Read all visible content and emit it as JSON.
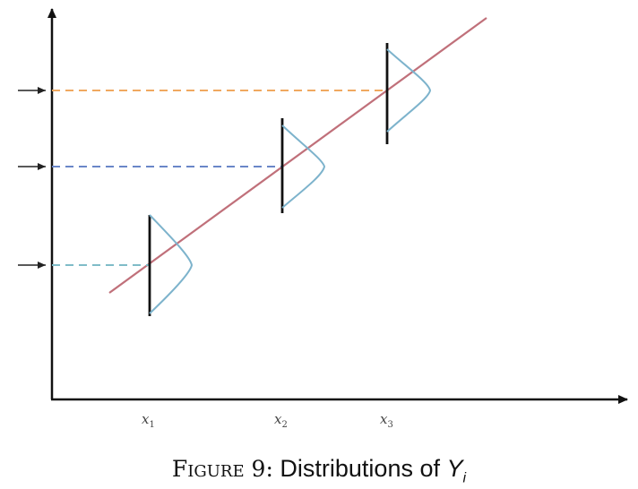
{
  "figure": {
    "caption_prefix": "Figure 9:",
    "caption_text": "Distributions of",
    "caption_variable": "Y",
    "caption_subscript": "i"
  },
  "x_labels": [
    {
      "base": "x",
      "sub": "1"
    },
    {
      "base": "x",
      "sub": "2"
    },
    {
      "base": "x",
      "sub": "3"
    }
  ],
  "colors": {
    "axes": "#111111",
    "regression_line": "#c0707a",
    "distribution_curve": "#7db3cc",
    "level_x1": "#7fbcc8",
    "level_x2": "#6a86c8",
    "level_x3": "#f0a860",
    "marker": "#111111",
    "arrow": "#222222"
  }
}
